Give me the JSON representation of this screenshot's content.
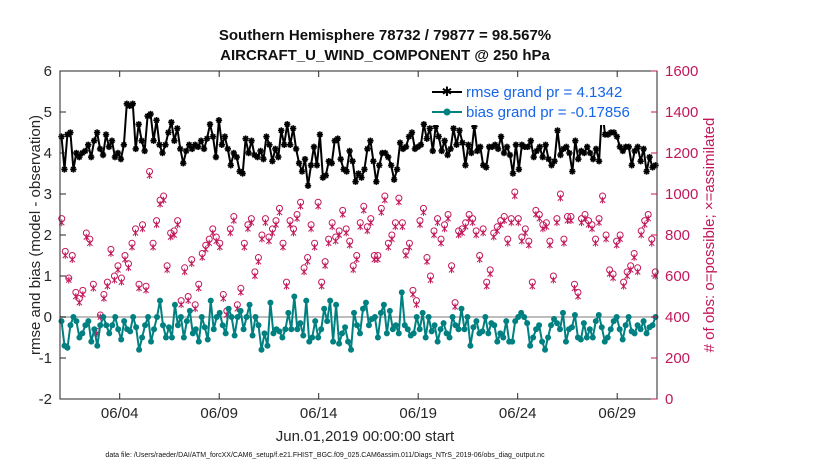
{
  "chart_data": {
    "type": "line",
    "title_line1": "Southern Hemisphere 78732 / 79877 = 98.567%",
    "title_line2": "AIRCRAFT_U_WIND_COMPONENT @ 250 hPa",
    "xlabel": "Jun.01,2019 00:00:00 start",
    "ylabel": "rmse and bias (model - observation)",
    "ylabel_right": "# of obs: o=possible; ×=assimilated",
    "x_ticks": [
      "06/04",
      "06/09",
      "06/14",
      "06/19",
      "06/24",
      "06/29"
    ],
    "x_tick_days": [
      4,
      9,
      14,
      19,
      24,
      29
    ],
    "xlim": [
      1,
      31
    ],
    "ylim": [
      -2,
      6
    ],
    "y_ticks": [
      "-2",
      "-1",
      "0",
      "1",
      "2",
      "3",
      "4",
      "5",
      "6"
    ],
    "y2lim": [
      0,
      1600
    ],
    "y2_ticks": [
      "0",
      "200",
      "400",
      "600",
      "800",
      "1000",
      "1200",
      "1400",
      "1600"
    ],
    "zero_line": 0,
    "footnote": "data file: /Users/raeder/DAI/ATM_forcXX/CAM6_setup/f.e21.FHIST_BGC.f09_025.CAM6assim.011/Diags_NTrS_2019-06/obs_diag_output.nc",
    "legend_position": "top-right",
    "series": [
      {
        "name": "rmse grand pr = 4.1342",
        "color": "#000000",
        "marker": "star",
        "values": [
          4.4,
          3.6,
          4.45,
          4.5,
          3.6,
          4.0,
          3.9,
          4.0,
          4.05,
          4.2,
          3.9,
          4.3,
          4.5,
          4.1,
          3.95,
          4.45,
          4.15,
          4.3,
          3.9,
          4.0,
          3.85,
          4.2,
          5.2,
          5.15,
          5.2,
          4.1,
          4.7,
          4.3,
          4.05,
          4.9,
          4.95,
          4.3,
          4.8,
          4.2,
          4.0,
          4.2,
          4.5,
          4.75,
          4.3,
          4.6,
          4.1,
          3.75,
          4.05,
          4.2,
          4.1,
          4.2,
          4.15,
          4.3,
          4.1,
          4.35,
          4.7,
          4.4,
          3.9,
          4.8,
          4.2,
          4.4,
          4.1,
          3.7,
          4.0,
          3.9,
          3.55,
          3.5,
          4.35,
          4.0,
          4.3,
          3.95,
          3.9,
          4.05,
          3.85,
          4.4,
          4.2,
          3.8,
          4.1,
          3.9,
          4.55,
          4.2,
          4.7,
          4.2,
          4.6,
          4.1,
          3.75,
          3.55,
          3.85,
          3.2,
          3.7,
          4.15,
          3.7,
          4.45,
          3.4,
          3.45,
          3.8,
          3.75,
          4.3,
          4.35,
          3.85,
          3.6,
          3.55,
          4.05,
          3.8,
          3.3,
          3.5,
          3.4,
          3.6,
          4.1,
          4.3,
          3.8,
          3.3,
          3.7,
          4.0,
          4.0,
          3.9,
          3.7,
          3.35,
          3.6,
          4.25,
          4.1,
          4.15,
          4.4,
          4.5,
          4.1,
          4.15,
          4.2,
          4.7,
          4.35,
          4.6,
          4.05,
          4.65,
          4.4,
          4.05,
          4.3,
          3.95,
          4.1,
          4.6,
          4.2,
          4.55,
          4.25,
          3.7,
          4.2,
          4.0,
          4.65,
          4.05,
          4.15,
          3.7,
          3.65,
          4.15,
          4.15,
          4.2,
          4.1,
          4.4,
          4.0,
          4.15,
          3.95,
          3.5,
          4.2,
          3.6,
          4.2,
          4.15,
          4.15,
          4.3,
          3.9,
          4.05,
          4.15,
          3.9,
          4.2,
          3.85,
          3.7,
          3.8,
          4.55,
          3.95,
          4.1,
          4.15,
          4.0,
          3.55,
          4.3,
          3.85,
          4.05,
          4.0,
          4.15,
          4.0,
          3.85,
          4.1,
          3.8,
          5.1,
          4.45,
          4.45,
          4.5,
          4.5,
          4.4,
          4.15,
          4.05,
          4.15,
          4.15,
          3.7,
          4.05,
          4.15,
          3.8,
          4.1,
          3.55,
          3.9,
          3.65,
          3.7
        ]
      },
      {
        "name": "bias grand pr = -0.17856",
        "color": "#008080",
        "marker": "dot",
        "values": [
          -0.1,
          -0.7,
          -0.75,
          -0.2,
          0.0,
          -0.1,
          -0.5,
          -0.4,
          -0.2,
          -0.1,
          -0.6,
          -0.3,
          -0.7,
          -0.2,
          0.0,
          -0.2,
          -0.4,
          -0.2,
          0.0,
          -0.3,
          -0.55,
          -0.1,
          -0.3,
          -0.35,
          0.0,
          -0.25,
          -0.8,
          -0.5,
          -0.2,
          0.0,
          -0.6,
          -0.3,
          0.0,
          0.4,
          -0.2,
          -0.5,
          -0.25,
          -0.5,
          0.3,
          -0.2,
          0.0,
          -0.5,
          -0.1,
          0.15,
          -0.4,
          -0.3,
          -0.6,
          0.0,
          -0.25,
          -0.55,
          0.4,
          -0.3,
          0.0,
          0.1,
          -0.2,
          -0.4,
          0.2,
          0.0,
          -0.45,
          0.0,
          0.15,
          -0.3,
          0.0,
          0.3,
          -0.45,
          0.0,
          -0.2,
          -0.8,
          -0.4,
          -0.7,
          0.35,
          -0.4,
          -0.3,
          -0.35,
          -0.5,
          -0.3,
          0.1,
          -0.3,
          0.5,
          -0.3,
          -0.15,
          -0.45,
          0.4,
          -0.6,
          -0.5,
          -0.1,
          -0.5,
          -0.3,
          0.2,
          -0.1,
          0.4,
          -0.6,
          0.3,
          -0.65,
          -0.4,
          -0.25,
          -0.6,
          -0.8,
          0.1,
          -0.2,
          -0.4,
          0.2,
          0.35,
          -0.2,
          -0.05,
          0.0,
          -0.5,
          0.1,
          0.3,
          -0.4,
          0.15,
          -0.3,
          -0.2,
          -0.4,
          0.6,
          -0.2,
          -0.3,
          -0.45,
          -0.4,
          0.0,
          -0.3,
          0.1,
          -0.5,
          0.0,
          -0.35,
          -0.2,
          -0.6,
          -0.3,
          -0.15,
          -0.4,
          -0.5,
          0.0,
          -0.2,
          -0.3,
          0.2,
          -0.3,
          0.0,
          -0.7,
          -0.25,
          -0.1,
          -0.4,
          -0.35,
          0.0,
          -0.4,
          -0.15,
          -0.2,
          -0.6,
          -0.4,
          -0.5,
          -0.1,
          -0.6,
          -0.6,
          -0.1,
          0.0,
          0.1,
          0.0,
          -0.15,
          -0.7,
          -0.5,
          -0.3,
          -0.2,
          -0.6,
          -0.8,
          -0.5,
          -0.2,
          -0.05,
          -0.15,
          -0.3,
          0.1,
          -0.6,
          -0.3,
          -0.25,
          0.05,
          -0.5,
          -0.55,
          -0.15,
          -0.5,
          -0.3,
          -0.5,
          -0.1,
          0.05,
          -0.25,
          -0.6,
          -0.5,
          -0.3,
          -0.1,
          0.0,
          -0.3,
          -0.55,
          -0.2,
          0.0,
          -0.35,
          -0.4,
          -0.2,
          -0.3,
          -0.1,
          -0.4,
          -0.25,
          -0.2,
          0.0
        ]
      }
    ],
    "obs_possible": [
      880,
      720,
      590,
      700,
      520,
      490,
      530,
      810,
      780,
      560,
      330,
      410,
      510,
      570,
      730,
      600,
      650,
      590,
      700,
      660,
      760,
      830,
      560,
      850,
      550,
      1110,
      760,
      870,
      970,
      990,
      650,
      810,
      820,
      870,
      480,
      640,
      500,
      680,
      460,
      560,
      710,
      750,
      780,
      830,
      790,
      760,
      510,
      430,
      830,
      890,
      460,
      540,
      760,
      850,
      880,
      620,
      690,
      800,
      880,
      790,
      830,
      870,
      930,
      760,
      570,
      870,
      830,
      900,
      960,
      640,
      690,
      850,
      760,
      960,
      570,
      670,
      780,
      860,
      790,
      820,
      920,
      830,
      770,
      650,
      700,
      860,
      940,
      840,
      880,
      700,
      700,
      930,
      990,
      760,
      800,
      860,
      980,
      860,
      720,
      760,
      530,
      480,
      870,
      930,
      690,
      600,
      820,
      880,
      780,
      850,
      900,
      650,
      470,
      820,
      830,
      860,
      900,
      880,
      820,
      700,
      830,
      570,
      630,
      810,
      840,
      870,
      890,
      780,
      880,
      1010,
      880,
      790,
      830,
      770,
      570,
      920,
      900,
      850,
      860,
      770,
      600,
      880,
      1000,
      780,
      890,
      890,
      560,
      520,
      880,
      900,
      870,
      850,
      780,
      880,
      990,
      800,
      630,
      610,
      770,
      800,
      570,
      620,
      650,
      710,
      640,
      820,
      870,
      900,
      780,
      620
    ],
    "obs_assimilated": [
      860,
      700,
      580,
      680,
      500,
      470,
      510,
      790,
      760,
      540,
      320,
      400,
      490,
      550,
      710,
      580,
      630,
      570,
      680,
      640,
      740,
      810,
      540,
      830,
      530,
      1090,
      740,
      850,
      950,
      970,
      630,
      790,
      800,
      850,
      460,
      620,
      480,
      660,
      440,
      540,
      690,
      730,
      760,
      810,
      770,
      740,
      490,
      410,
      810,
      870,
      440,
      520,
      740,
      830,
      860,
      600,
      670,
      780,
      860,
      770,
      810,
      850,
      910,
      740,
      550,
      850,
      810,
      880,
      940,
      620,
      670,
      830,
      740,
      940,
      550,
      650,
      760,
      840,
      770,
      800,
      900,
      810,
      750,
      630,
      680,
      840,
      920,
      820,
      860,
      680,
      680,
      910,
      970,
      740,
      780,
      840,
      960,
      840,
      700,
      740,
      510,
      460,
      850,
      910,
      670,
      580,
      800,
      860,
      760,
      830,
      880,
      630,
      450,
      800,
      810,
      840,
      880,
      860,
      800,
      680,
      810,
      550,
      610,
      790,
      820,
      850,
      870,
      760,
      860,
      990,
      860,
      770,
      810,
      750,
      550,
      900,
      880,
      830,
      840,
      750,
      580,
      860,
      980,
      760,
      870,
      870,
      540,
      500,
      860,
      880,
      850,
      830,
      760,
      860,
      970,
      780,
      610,
      590,
      750,
      780,
      550,
      600,
      630,
      690,
      620,
      800,
      850,
      880,
      760,
      600
    ],
    "obs_color": "#c2185b"
  }
}
